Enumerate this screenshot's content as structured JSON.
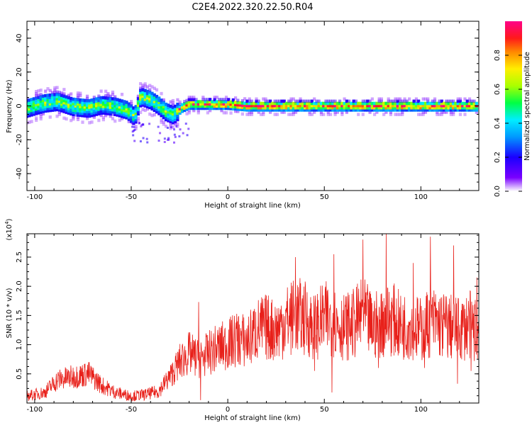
{
  "title": "C2E4.2022.320.22.50.R04",
  "colors": {
    "snr_line": "#e8201a",
    "frame": "#000000"
  },
  "chart_data": [
    {
      "type": "heatmap",
      "xlabel": "Height of straight line (km)",
      "ylabel": "Frequency (Hz)",
      "xlim": [
        -104,
        130
      ],
      "ylim": [
        -50,
        50
      ],
      "xticks": [
        "-100",
        "-50",
        "0",
        "50",
        "100"
      ],
      "xtick_values": [
        -100,
        -50,
        0,
        50,
        100
      ],
      "yticks": [
        "-40",
        "-20",
        "0",
        "20",
        "40"
      ],
      "ytick_values": [
        -40,
        -20,
        0,
        20,
        40
      ],
      "grid": false,
      "colorbar": {
        "label": "Normalized spectral amplitude",
        "range": [
          0,
          1
        ],
        "ticks": [
          "0.0",
          "0.2",
          "0.4",
          "0.6",
          "0.8"
        ],
        "tick_values": [
          0.0,
          0.2,
          0.4,
          0.6,
          0.8
        ]
      },
      "ridge": [
        {
          "x": -104,
          "y": -1
        },
        {
          "x": -95,
          "y": 2
        },
        {
          "x": -88,
          "y": 3
        },
        {
          "x": -80,
          "y": 0
        },
        {
          "x": -72,
          "y": -1
        },
        {
          "x": -65,
          "y": 1
        },
        {
          "x": -58,
          "y": 0
        },
        {
          "x": -52,
          "y": -2
        },
        {
          "x": -48,
          "y": -6
        },
        {
          "x": -45,
          "y": 6
        },
        {
          "x": -40,
          "y": 4
        },
        {
          "x": -36,
          "y": 1
        },
        {
          "x": -32,
          "y": -3
        },
        {
          "x": -28,
          "y": -5
        },
        {
          "x": -24,
          "y": -1
        },
        {
          "x": -20,
          "y": 1
        },
        {
          "x": -10,
          "y": 1
        },
        {
          "x": 0,
          "y": 1
        },
        {
          "x": 10,
          "y": 0
        },
        {
          "x": 30,
          "y": 0
        },
        {
          "x": 60,
          "y": 0
        },
        {
          "x": 90,
          "y": 0
        },
        {
          "x": 110,
          "y": 0
        },
        {
          "x": 130,
          "y": 0
        }
      ]
    },
    {
      "type": "line",
      "xlabel": "Height of straight line (km)",
      "ylabel": "SNR (10 * v/v)",
      "y_multiplier": "(x10",
      "y_multiplier_exp": "4",
      "y_multiplier_close": ")",
      "xlim": [
        -104,
        130
      ],
      "ylim": [
        0,
        2.9
      ],
      "xticks": [
        "-100",
        "-50",
        "0",
        "50",
        "100"
      ],
      "xtick_values": [
        -100,
        -50,
        0,
        50,
        100
      ],
      "yticks": [
        "0.5",
        "1.0",
        "1.5",
        "2.0",
        "2.5"
      ],
      "ytick_values": [
        0.5,
        1.0,
        1.5,
        2.0,
        2.5
      ],
      "grid": false,
      "series": [
        {
          "values": [
            {
              "x": -104,
              "y": 0.12
            },
            {
              "x": -95,
              "y": 0.18
            },
            {
              "x": -88,
              "y": 0.4
            },
            {
              "x": -80,
              "y": 0.45
            },
            {
              "x": -72,
              "y": 0.5
            },
            {
              "x": -65,
              "y": 0.3
            },
            {
              "x": -58,
              "y": 0.18
            },
            {
              "x": -50,
              "y": 0.12
            },
            {
              "x": -42,
              "y": 0.15
            },
            {
              "x": -36,
              "y": 0.2
            },
            {
              "x": -30,
              "y": 0.45
            },
            {
              "x": -25,
              "y": 0.7
            },
            {
              "x": -20,
              "y": 0.85
            },
            {
              "x": -15,
              "y": 0.75
            },
            {
              "x": -10,
              "y": 0.85
            },
            {
              "x": -5,
              "y": 0.95
            },
            {
              "x": 0,
              "y": 1.0
            },
            {
              "x": 5,
              "y": 1.1
            },
            {
              "x": 10,
              "y": 1.05
            },
            {
              "x": 15,
              "y": 1.25
            },
            {
              "x": 20,
              "y": 1.3
            },
            {
              "x": 25,
              "y": 1.25
            },
            {
              "x": 30,
              "y": 1.4
            },
            {
              "x": 35,
              "y": 1.5
            },
            {
              "x": 40,
              "y": 1.45
            },
            {
              "x": 45,
              "y": 1.3
            },
            {
              "x": 50,
              "y": 1.45
            },
            {
              "x": 55,
              "y": 1.4
            },
            {
              "x": 60,
              "y": 1.3
            },
            {
              "x": 65,
              "y": 1.35
            },
            {
              "x": 70,
              "y": 1.5
            },
            {
              "x": 75,
              "y": 1.3
            },
            {
              "x": 80,
              "y": 1.4
            },
            {
              "x": 85,
              "y": 1.45
            },
            {
              "x": 90,
              "y": 1.3
            },
            {
              "x": 95,
              "y": 1.35
            },
            {
              "x": 100,
              "y": 1.25
            },
            {
              "x": 105,
              "y": 1.4
            },
            {
              "x": 110,
              "y": 1.35
            },
            {
              "x": 115,
              "y": 1.3
            },
            {
              "x": 120,
              "y": 1.25
            },
            {
              "x": 125,
              "y": 1.35
            },
            {
              "x": 130,
              "y": 1.2
            }
          ],
          "peaks": [
            {
              "x": -15,
              "y": 1.73
            },
            {
              "x": 5,
              "y": 1.4
            },
            {
              "x": 35,
              "y": 2.5
            },
            {
              "x": 55,
              "y": 2.55
            },
            {
              "x": 70,
              "y": 2.8
            },
            {
              "x": 82,
              "y": 2.9
            },
            {
              "x": 96,
              "y": 2.4
            },
            {
              "x": 105,
              "y": 2.85
            },
            {
              "x": 117,
              "y": 2.7
            },
            {
              "x": 129,
              "y": 2.15
            }
          ],
          "troughs": [
            {
              "x": -14,
              "y": 0.05
            },
            {
              "x": 45,
              "y": 0.55
            },
            {
              "x": 54,
              "y": 0.18
            },
            {
              "x": 78,
              "y": 0.6
            },
            {
              "x": 102,
              "y": 0.6
            },
            {
              "x": 119,
              "y": 0.33
            },
            {
              "x": 126,
              "y": 0.55
            }
          ]
        }
      ]
    }
  ]
}
